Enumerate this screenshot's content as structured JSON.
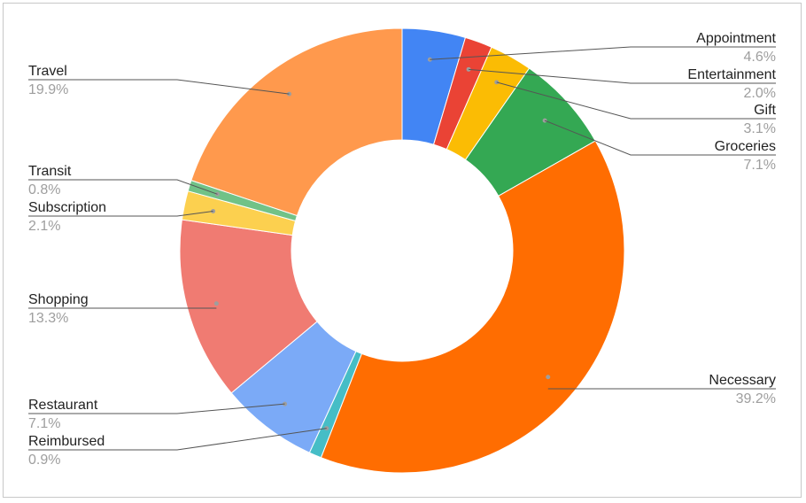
{
  "chart_data": {
    "type": "pie",
    "donut": true,
    "start_angle_deg": 0,
    "direction": "clockwise",
    "legend": "labeled leader lines",
    "slices": [
      {
        "label": "Appointment",
        "value": 4.6,
        "pct_text": "4.6%",
        "color": "#4285f4",
        "side": "right"
      },
      {
        "label": "Entertainment",
        "value": 2.0,
        "pct_text": "2.0%",
        "color": "#ea4335",
        "side": "right"
      },
      {
        "label": "Gift",
        "value": 3.1,
        "pct_text": "3.1%",
        "color": "#fbbc04",
        "side": "right"
      },
      {
        "label": "Groceries",
        "value": 7.1,
        "pct_text": "7.1%",
        "color": "#34a853",
        "side": "right"
      },
      {
        "label": "Necessary",
        "value": 39.2,
        "pct_text": "39.2%",
        "color": "#ff6d01",
        "side": "right"
      },
      {
        "label": "Reimbursed",
        "value": 0.9,
        "pct_text": "0.9%",
        "color": "#46bdc6",
        "side": "left"
      },
      {
        "label": "Restaurant",
        "value": 7.1,
        "pct_text": "7.1%",
        "color": "#7baaf7",
        "side": "left"
      },
      {
        "label": "Shopping",
        "value": 13.3,
        "pct_text": "13.3%",
        "color": "#f07b72",
        "side": "left"
      },
      {
        "label": "Subscription",
        "value": 2.1,
        "pct_text": "2.1%",
        "color": "#fcd04f",
        "side": "left"
      },
      {
        "label": "Transit",
        "value": 0.8,
        "pct_text": "0.8%",
        "color": "#71c287",
        "side": "left"
      },
      {
        "label": "Travel",
        "value": 19.9,
        "pct_text": "19.9%",
        "color": "#ff994d",
        "side": "left"
      }
    ]
  }
}
